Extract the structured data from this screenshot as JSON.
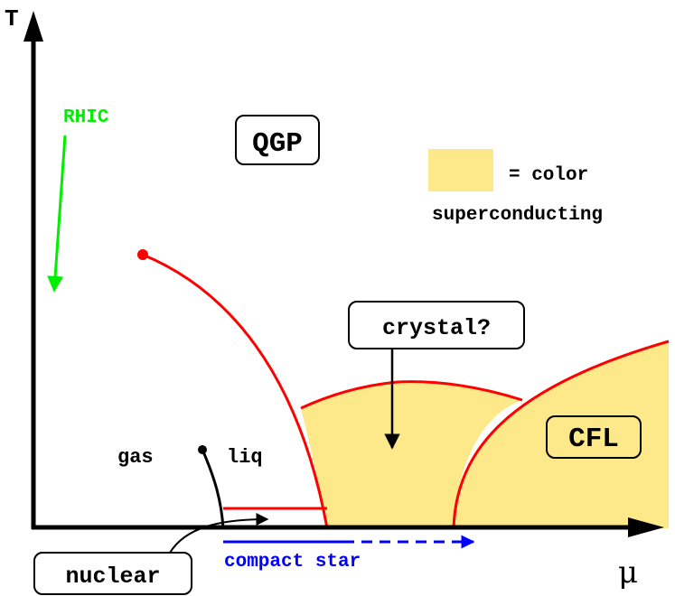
{
  "axes": {
    "y_label": "T",
    "x_label": "μ"
  },
  "labels": {
    "rhic": "RHIC",
    "qgp": "QGP",
    "legend_line1": "= color",
    "legend_line2": "superconducting",
    "crystal": "crystal?",
    "cfl": "CFL",
    "gas": "gas",
    "liq": "liq",
    "nuclear": "nuclear",
    "compact_star": "compact star"
  },
  "colors": {
    "superconducting_fill": "#fde98a",
    "phase_boundary": "#ff0000",
    "rhic_arrow": "#00ee00",
    "compact_star_arrow": "#0000ff",
    "axes": "#000000"
  }
}
